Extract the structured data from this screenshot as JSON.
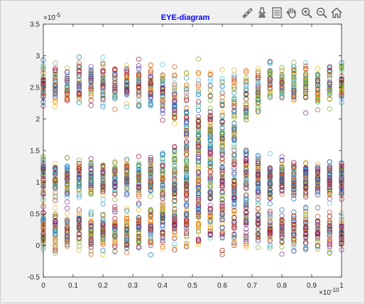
{
  "chart_data": {
    "type": "scatter",
    "title": "EYE-diagram",
    "xlabel": "",
    "ylabel": "",
    "xlim": [
      0,
      1
    ],
    "ylim": [
      -0.5,
      3.5
    ],
    "x_exponent": "×10",
    "x_exponent_power": "-10",
    "y_exponent": "×10",
    "y_exponent_power": "-5",
    "x_ticks": [
      "0",
      "0.1",
      "0.2",
      "0.3",
      "0.4",
      "0.5",
      "0.6",
      "0.7",
      "0.8",
      "0.9",
      "1"
    ],
    "y_ticks": [
      "-0.5",
      "0",
      "0.5",
      "1",
      "1.5",
      "2",
      "2.5",
      "3",
      "3.5"
    ],
    "grid": false,
    "marker": "circle-open",
    "x_samples": 26,
    "traces": 140,
    "levels": [
      {
        "name": "",
        "center": 2.55,
        "spread": 0.32
      },
      {
        "name": "",
        "center": 1.05,
        "spread": 0.3
      },
      {
        "name": "",
        "center": 0.25,
        "spread": 0.32
      }
    ],
    "series_colors": [
      "#0072bd",
      "#d95319",
      "#edb120",
      "#7e2f8e",
      "#77ac30",
      "#4dbeee",
      "#a2142f"
    ]
  },
  "toolbar": {
    "items": [
      {
        "icon": "brush-icon"
      },
      {
        "icon": "data-tips-icon"
      },
      {
        "icon": "legend-icon"
      },
      {
        "icon": "pan-hand-icon"
      },
      {
        "icon": "zoom-in-icon"
      },
      {
        "icon": "zoom-out-icon"
      },
      {
        "icon": "home-icon"
      }
    ]
  }
}
